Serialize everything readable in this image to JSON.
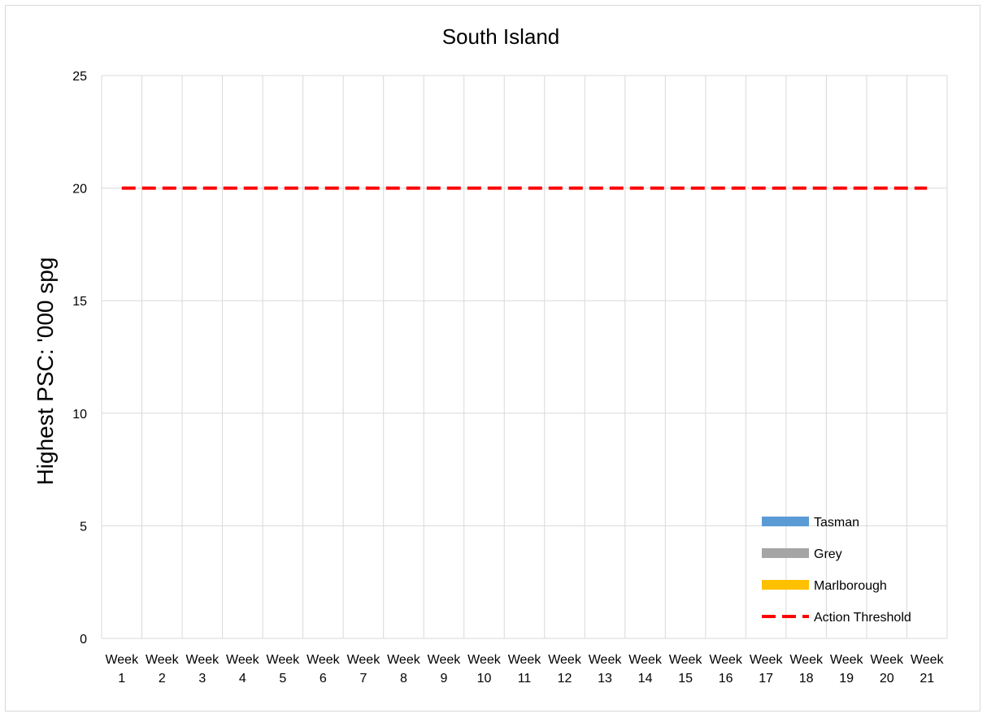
{
  "chart_data": {
    "type": "bar",
    "title": "South Island",
    "xlabel": "",
    "ylabel": "Highest PSC: '000 spg",
    "ylim": [
      0,
      25
    ],
    "yticks": [
      0,
      5,
      10,
      15,
      20,
      25
    ],
    "grid": true,
    "legend_position": "bottom-right",
    "categories": [
      [
        "Week",
        "1"
      ],
      [
        "Week",
        "2"
      ],
      [
        "Week",
        "3"
      ],
      [
        "Week",
        "4"
      ],
      [
        "Week",
        "5"
      ],
      [
        "Week",
        "6"
      ],
      [
        "Week",
        "7"
      ],
      [
        "Week",
        "8"
      ],
      [
        "Week",
        "9"
      ],
      [
        "Week",
        "10"
      ],
      [
        "Week",
        "11"
      ],
      [
        "Week",
        "12"
      ],
      [
        "Week",
        "13"
      ],
      [
        "Week",
        "14"
      ],
      [
        "Week",
        "15"
      ],
      [
        "Week",
        "16"
      ],
      [
        "Week",
        "17"
      ],
      [
        "Week",
        "18"
      ],
      [
        "Week",
        "19"
      ],
      [
        "Week",
        "20"
      ],
      [
        "Week",
        "21"
      ]
    ],
    "series": [
      {
        "name": "Tasman",
        "kind": "bar",
        "color": "#5b9bd5",
        "values": [
          null,
          null,
          null,
          null,
          null,
          null,
          null,
          null,
          null,
          null,
          null,
          null,
          null,
          null,
          null,
          null,
          null,
          null,
          null,
          null,
          null
        ]
      },
      {
        "name": "Grey",
        "kind": "bar",
        "color": "#a5a5a5",
        "values": [
          null,
          null,
          null,
          null,
          null,
          null,
          null,
          null,
          null,
          null,
          null,
          null,
          null,
          null,
          null,
          null,
          null,
          null,
          null,
          null,
          null
        ]
      },
      {
        "name": "Marlborough",
        "kind": "bar",
        "color": "#ffc000",
        "values": [
          null,
          null,
          null,
          null,
          null,
          null,
          null,
          null,
          null,
          null,
          null,
          null,
          null,
          null,
          null,
          null,
          null,
          null,
          null,
          null,
          null
        ]
      },
      {
        "name": "Action Threshold",
        "kind": "line",
        "style": "dashed",
        "color": "#ff0000",
        "values": [
          20,
          20,
          20,
          20,
          20,
          20,
          20,
          20,
          20,
          20,
          20,
          20,
          20,
          20,
          20,
          20,
          20,
          20,
          20,
          20,
          20
        ]
      }
    ]
  }
}
